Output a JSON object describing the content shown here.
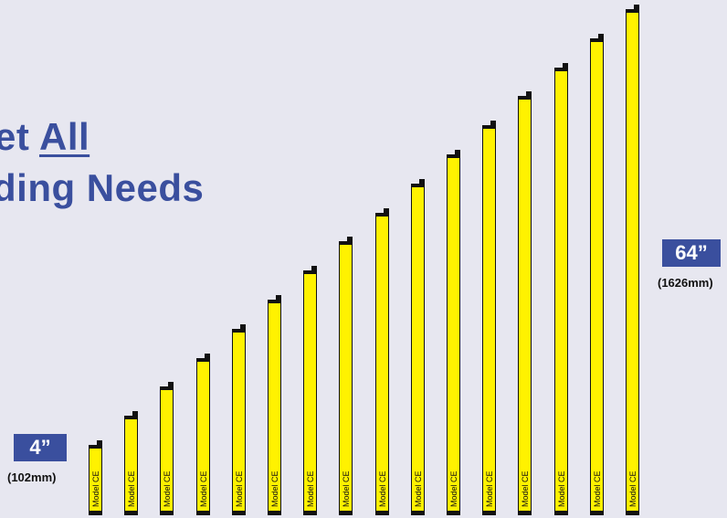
{
  "headline": {
    "line1_prefix": "et",
    "line1_emphasis": "All",
    "line2": "ding Needs"
  },
  "size_min": {
    "inches": "4”",
    "metric": "(102mm)"
  },
  "size_max": {
    "inches": "64”",
    "metric": "(1626mm)"
  },
  "bar_label": "Model CE",
  "bars": [
    {
      "label": "Model CE"
    },
    {
      "label": "Model CE"
    },
    {
      "label": "Model CE"
    },
    {
      "label": "Model CE"
    },
    {
      "label": "Model CE"
    },
    {
      "label": "Model CE"
    },
    {
      "label": "Model CE"
    },
    {
      "label": "Model CE"
    },
    {
      "label": "Model CE"
    },
    {
      "label": "Model CE"
    },
    {
      "label": "Model CE"
    },
    {
      "label": "Model CE"
    },
    {
      "label": "Model CE"
    },
    {
      "label": "Model CE"
    },
    {
      "label": "Model CE"
    },
    {
      "label": "Model CE"
    }
  ],
  "colors": {
    "background": "#e7e7f0",
    "headline": "#3a4f9e",
    "badge": "#3a4f9e",
    "bar_fill": "#fff200",
    "bar_outline": "#111111"
  }
}
